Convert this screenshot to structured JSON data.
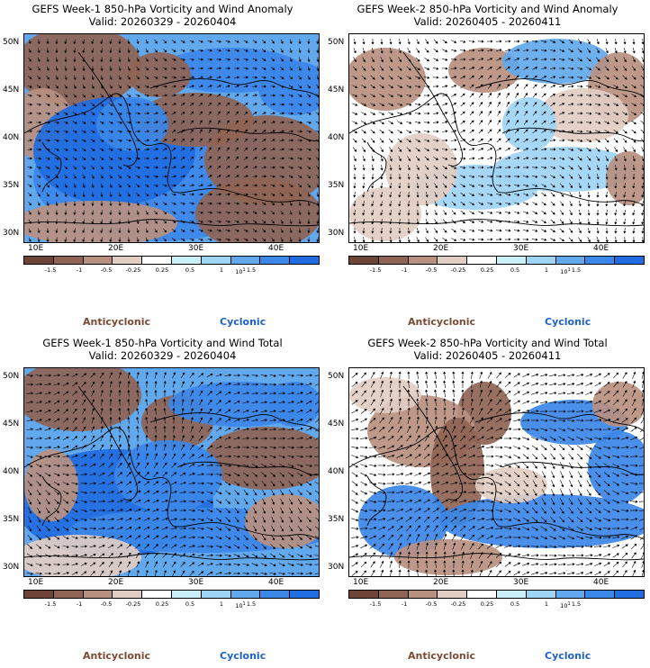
{
  "colors": {
    "dark_brown": "#6d4435",
    "brown": "#8f6454",
    "mid_brown": "#b89080",
    "light_brown": "#e2cdc3",
    "white": "#ffffff",
    "pale_blue": "#c9f0f8",
    "light_blue": "#9ed4f5",
    "mid_blue": "#62a8ec",
    "blue": "#3b87e8",
    "dark_blue": "#1f6de0",
    "anticyclonic_text": "#7b4a35",
    "cyclonic_text": "#1f62c9"
  },
  "colorbar": {
    "labels": [
      "-1.5",
      "-1",
      "-0.5",
      "-0.25",
      "0.25",
      "0.5",
      "1",
      "1.5"
    ],
    "scale_label": "10",
    "scale_exp": "1"
  },
  "legend": {
    "anticyclonic": "Anticyclonic",
    "cyclonic": "Cyclonic"
  },
  "axes": {
    "lat_labels": [
      "50N",
      "45N",
      "40N",
      "35N",
      "30N"
    ],
    "lon_labels": [
      "10E",
      "20E",
      "30E",
      "40E"
    ]
  },
  "panels": [
    {
      "title": "GEFS Week-1 850-hPa Vorticity and Wind Anomaly",
      "valid": "Valid: 20260329 - 20260404"
    },
    {
      "title": "GEFS Week-2 850-hPa Vorticity and Wind Anomaly",
      "valid": "Valid: 20260405 - 20260411"
    },
    {
      "title": "GEFS Week-1 850-hPa Vorticity and Wind Total",
      "valid": "Valid: 20260329 - 20260404"
    },
    {
      "title": "GEFS Week-2 850-hPa Vorticity and Wind Total",
      "valid": "Valid: 20260405 - 20260411"
    }
  ]
}
